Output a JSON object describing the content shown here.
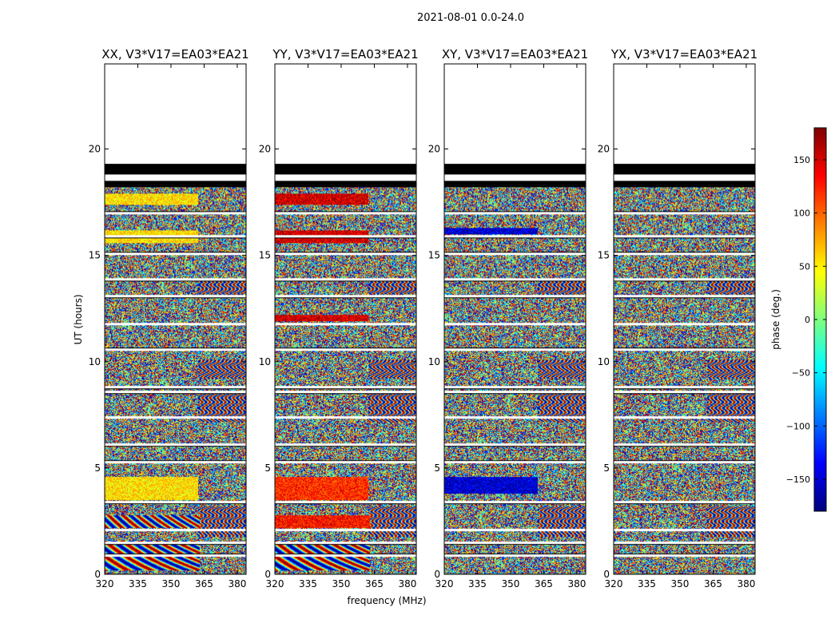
{
  "figure": {
    "suptitle": "2021-08-01 0.0-24.0"
  },
  "chart_data": {
    "type": "heatmap",
    "title": "2021-08-01 0.0-24.0",
    "xlabel": "frequency (MHz)",
    "ylabel": "UT (hours)",
    "xlim": [
      320,
      384
    ],
    "ylim": [
      0,
      24
    ],
    "xticks": [
      320,
      335,
      350,
      365,
      380
    ],
    "yticks": [
      0,
      5,
      10,
      15,
      20
    ],
    "data_ut_range": [
      0,
      18.2
    ],
    "panels": [
      {
        "title": "XX, V3*V17=EA03*EA21",
        "bias_regions": [
          {
            "ut": [
              0.2,
              1.6
            ],
            "f_max": 363,
            "phase": "fringe",
            "comment": "rainbow fringe pattern"
          },
          {
            "ut": [
              2.2,
              2.8
            ],
            "f_max": 363,
            "phase": "fringe"
          },
          {
            "ut": [
              3.5,
              4.6
            ],
            "f_max": 362,
            "phase": 55
          },
          {
            "ut": [
              15.6,
              16.2
            ],
            "f_max": 362,
            "phase": 55
          },
          {
            "ut": [
              17.4,
              17.9
            ],
            "f_max": 362,
            "phase": 55
          }
        ]
      },
      {
        "title": "YY, V3*V17=EA03*EA21",
        "bias_regions": [
          {
            "ut": [
              0.2,
              1.6
            ],
            "f_max": 363,
            "phase": "fringe"
          },
          {
            "ut": [
              2.2,
              2.8
            ],
            "f_max": 363,
            "phase": 130
          },
          {
            "ut": [
              3.5,
              4.6
            ],
            "f_max": 362,
            "phase": 120
          },
          {
            "ut": [
              11.9,
              12.2
            ],
            "f_max": 362,
            "phase": 150
          },
          {
            "ut": [
              15.6,
              16.2
            ],
            "f_max": 362,
            "phase": 150
          },
          {
            "ut": [
              17.4,
              17.9
            ],
            "f_max": 362,
            "phase": 150
          }
        ]
      },
      {
        "title": "XY, V3*V17=EA03*EA21",
        "bias_regions": [
          {
            "ut": [
              3.8,
              4.6
            ],
            "f_max": 362,
            "phase": -150
          },
          {
            "ut": [
              16.0,
              16.3
            ],
            "f_max": 362,
            "phase": -150
          }
        ]
      },
      {
        "title": "YX, V3*V17=EA03*EA21",
        "bias_regions": []
      }
    ],
    "flagged_bands_ut": [
      [
        18.2,
        18.5
      ],
      [
        18.8,
        19.3
      ]
    ],
    "gap_rows_ut": [
      0.9,
      1.5,
      2.1,
      3.4,
      5.3,
      6.1,
      7.4,
      8.6,
      8.8,
      10.6,
      11.8,
      13.1,
      13.9,
      15.1,
      15.9,
      17.0
    ],
    "colorbar": {
      "label": "phase (deg.)",
      "range": [
        -180,
        180
      ],
      "ticks": [
        -150,
        -100,
        -50,
        0,
        50,
        100,
        150
      ],
      "tick_labels": [
        "−150",
        "−100",
        "−50",
        "0",
        "50",
        "100",
        "150"
      ],
      "colors": [
        "#00007f",
        "#0000ff",
        "#007fff",
        "#00ffff",
        "#7fff7f",
        "#ffff00",
        "#ff7f00",
        "#ff0000",
        "#7f0000"
      ]
    }
  }
}
